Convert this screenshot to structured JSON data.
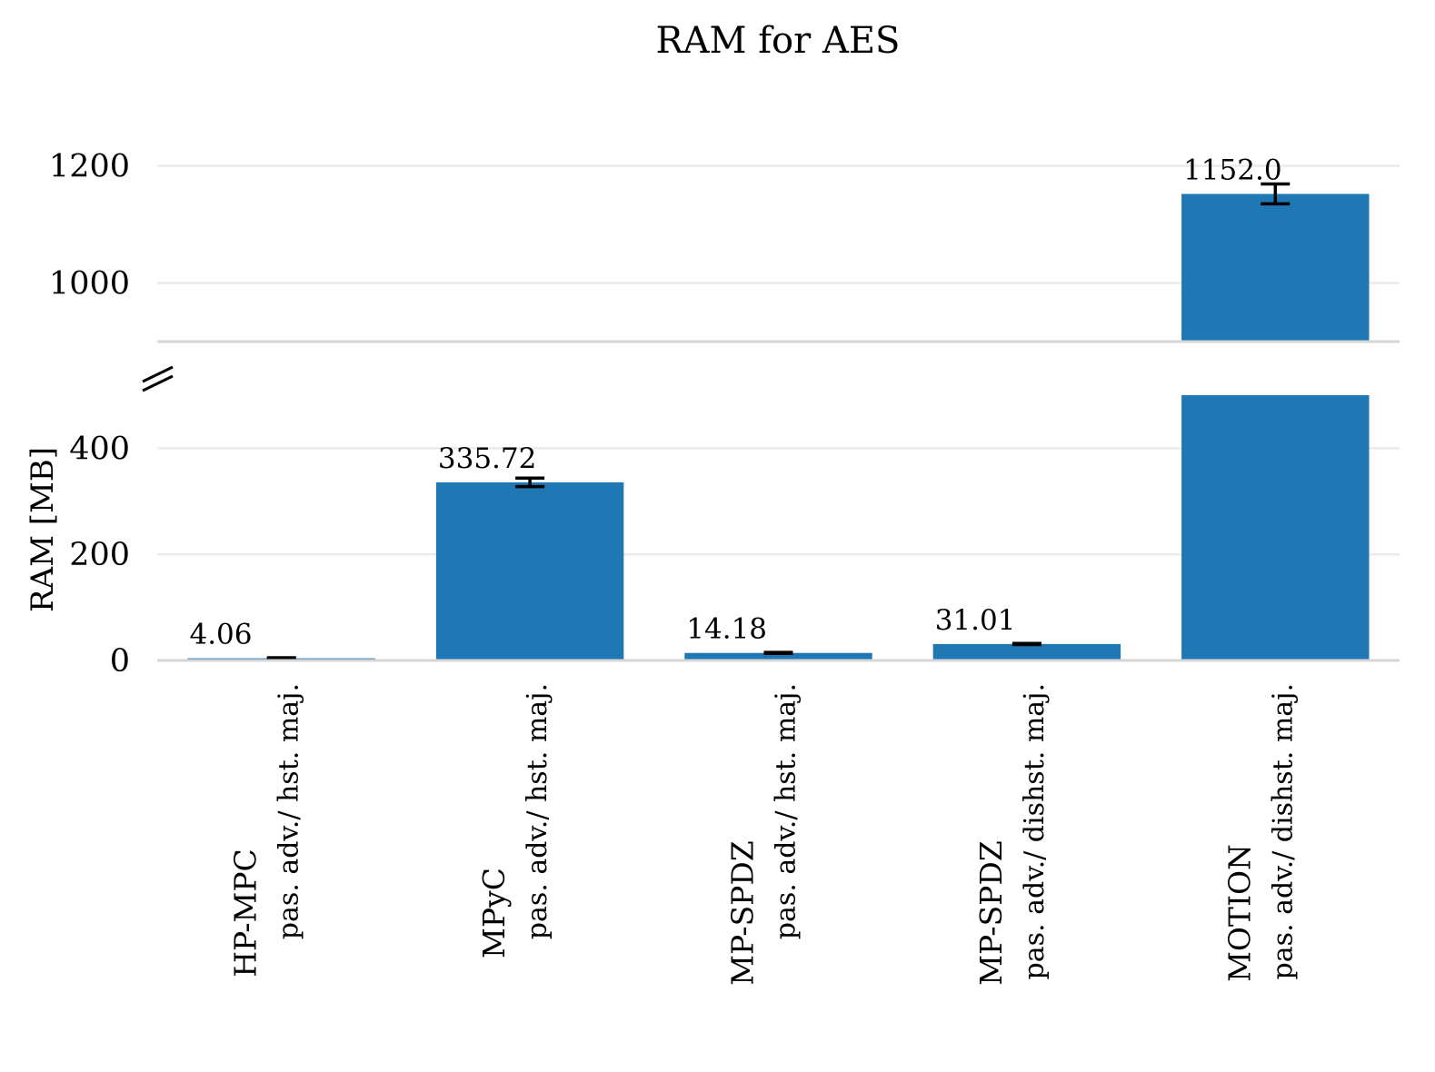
{
  "chart_data": {
    "type": "bar",
    "title": "RAM for AES",
    "ylabel": "RAM [MB]",
    "xlabel": "",
    "broken_axis": true,
    "lower_ylim": [
      0,
      500
    ],
    "upper_ylim": [
      900,
      1300
    ],
    "lower_ticks": [
      0,
      200,
      400
    ],
    "upper_ticks": [
      1000,
      1200
    ],
    "grid": true,
    "bar_color": "#1f77b4",
    "categories": [
      {
        "name": "HP-MPC",
        "setting": "pas. adv./ hst. maj."
      },
      {
        "name": "MPyC",
        "setting": "pas. adv./ hst. maj."
      },
      {
        "name": "MP-SPDZ",
        "setting": "pas. adv./ hst. maj."
      },
      {
        "name": "MP-SPDZ",
        "setting": "pas. adv./ dishst. maj."
      },
      {
        "name": "MOTION",
        "setting": "pas. adv./ dishst. maj."
      }
    ],
    "values": [
      4.06,
      335.72,
      14.18,
      31.01,
      1152.0
    ],
    "value_labels": [
      "4.06",
      "335.72",
      "14.18",
      "31.01",
      "1152.0"
    ],
    "errors": [
      1,
      8,
      1,
      1,
      17
    ]
  }
}
